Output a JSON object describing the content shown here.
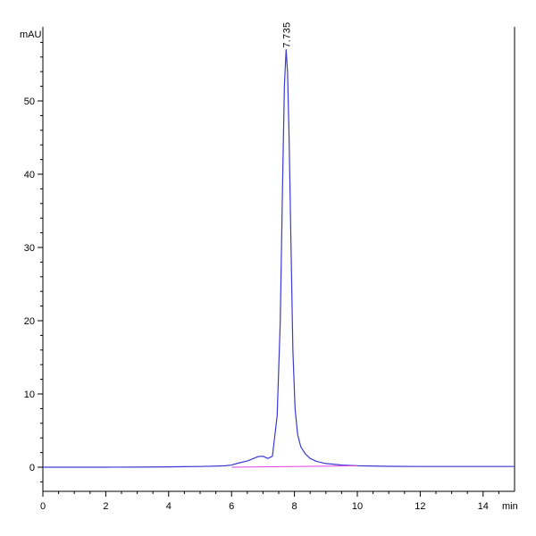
{
  "chart_data": {
    "type": "line",
    "ylabel": "mAU",
    "xlabel": "min",
    "xlim": [
      0,
      15
    ],
    "ylim": [
      -3,
      60
    ],
    "x_ticks": [
      0,
      2,
      4,
      6,
      8,
      10,
      12,
      14
    ],
    "x_tick_labels": [
      "0",
      "2",
      "4",
      "6",
      "8",
      "10",
      "12",
      "14"
    ],
    "y_ticks": [
      0,
      10,
      20,
      30,
      40,
      50
    ],
    "y_tick_labels": [
      "0",
      "10",
      "20",
      "30",
      "40",
      "50"
    ],
    "grid": false,
    "series": [
      {
        "color": "#3a3ad6",
        "x": [
          0,
          1,
          2,
          3,
          4,
          4.5,
          5,
          5.5,
          5.8,
          6.0,
          6.2,
          6.5,
          6.7,
          6.85,
          7.0,
          7.15,
          7.3,
          7.45,
          7.55,
          7.62,
          7.68,
          7.735,
          7.78,
          7.83,
          7.9,
          7.95,
          8.02,
          8.1,
          8.2,
          8.35,
          8.5,
          8.7,
          9.0,
          9.5,
          10.0,
          11.0,
          12.0,
          13.0,
          14.0,
          15.0
        ],
        "y": [
          0.0,
          0.0,
          0.0,
          0.02,
          0.05,
          0.08,
          0.1,
          0.15,
          0.2,
          0.3,
          0.55,
          0.85,
          1.2,
          1.45,
          1.5,
          1.2,
          1.5,
          7.0,
          20.0,
          38.0,
          52.0,
          57.0,
          54.0,
          45.0,
          28.0,
          16.0,
          8.0,
          4.5,
          2.8,
          1.8,
          1.2,
          0.8,
          0.5,
          0.3,
          0.2,
          0.12,
          0.1,
          0.1,
          0.1,
          0.1
        ]
      },
      {
        "color": "#e040e0",
        "x": [
          6.0,
          10.0
        ],
        "y": [
          0.0,
          0.2
        ]
      }
    ],
    "annotations": [
      {
        "text": "7.735",
        "x": 7.735,
        "y": 57.0,
        "rotation": -90
      }
    ]
  }
}
